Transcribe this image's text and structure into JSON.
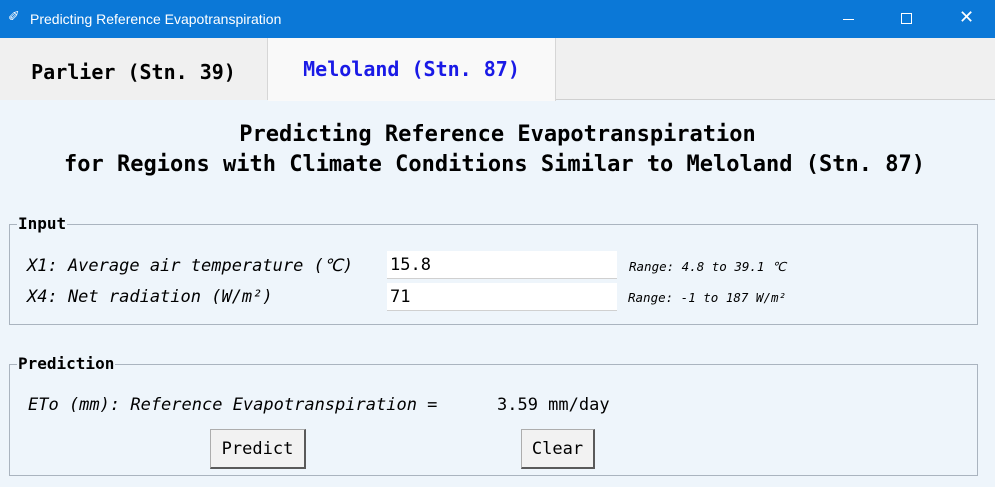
{
  "window": {
    "title": "Predicting Reference Evapotranspiration",
    "app_icon": "feather-icon",
    "close_glyph": "✕",
    "app_glyph": "✐"
  },
  "tabs": [
    {
      "label": "Parlier (Stn. 39)",
      "selected": false
    },
    {
      "label": "Meloland (Stn. 87)",
      "selected": true
    }
  ],
  "heading": {
    "line1": "Predicting Reference Evapotranspiration",
    "line2": "for Regions with Climate Conditions Similar to Meloland (Stn. 87)"
  },
  "input": {
    "legend": "Input",
    "x1_label": "X1: Average air temperature (℃)",
    "x1_value": "15.8",
    "x1_range": "Range: 4.8 to 39.1 ℃",
    "x4_label": "X4: Net radiation (W/m²)",
    "x4_value": "71",
    "x4_range": "Range: -1 to 187 W/m²"
  },
  "prediction": {
    "legend": "Prediction",
    "result_label": "ETo (mm): Reference Evapotranspiration =",
    "result_value": "3.59 mm/day",
    "predict_label": "Predict",
    "clear_label": "Clear"
  },
  "colors": {
    "titlebar": "#0b78d7",
    "selected_tab_text": "#1a1ae6",
    "content_bg": "#eef5fb"
  }
}
